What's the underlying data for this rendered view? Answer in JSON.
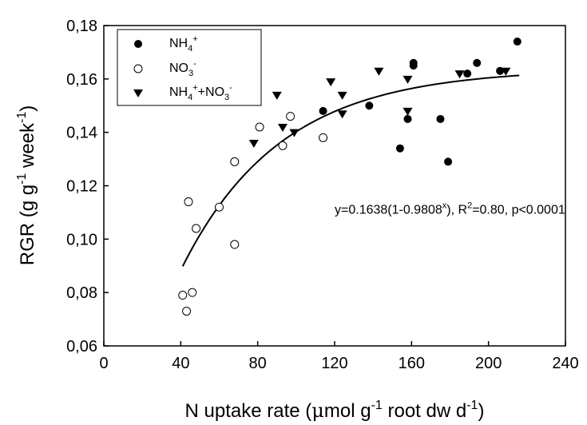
{
  "chart_data": {
    "type": "scatter",
    "xlabel": {
      "main": "N uptake rate (",
      "mu": "μ",
      "mol": "mol g",
      "sup1": "-1",
      "mid": " root dw d",
      "sup2": "-1",
      "end": ")"
    },
    "ylabel": {
      "main": "RGR (g g",
      "sup1": "-1",
      "mid": " week",
      "sup2": "-1",
      "end": ")"
    },
    "xlim": [
      0,
      240
    ],
    "ylim": [
      0.06,
      0.18
    ],
    "x_ticks": [
      0,
      40,
      80,
      120,
      160,
      200,
      240
    ],
    "x_tick_labels": [
      "0",
      "40",
      "80",
      "120",
      "160",
      "200",
      "240"
    ],
    "y_ticks": [
      0.06,
      0.08,
      0.1,
      0.12,
      0.14,
      0.16,
      0.18
    ],
    "y_tick_labels": [
      "0,06",
      "0,08",
      "0,10",
      "0,12",
      "0,14",
      "0,16",
      "0,18"
    ],
    "grid": false,
    "legend_position": "top-left",
    "legend": [
      {
        "key": "nh4",
        "marker": "filled-circle",
        "label": {
          "base": "NH",
          "sub": "4",
          "sup": "+"
        }
      },
      {
        "key": "no3",
        "marker": "open-circle",
        "label": {
          "base": "NO",
          "sub": "3",
          "sup": "-"
        }
      },
      {
        "key": "mixed",
        "marker": "filled-triangle-down",
        "label": {
          "base": "NH",
          "sub": "4",
          "sup": "+",
          "rest": "+NO",
          "sub2": "3",
          "sup2": "-"
        }
      }
    ],
    "series": [
      {
        "key": "nh4",
        "marker": "filled-circle",
        "points": [
          [
            114,
            0.148
          ],
          [
            138,
            0.15
          ],
          [
            154,
            0.134
          ],
          [
            158,
            0.145
          ],
          [
            161,
            0.165
          ],
          [
            161,
            0.166
          ],
          [
            175,
            0.145
          ],
          [
            179,
            0.129
          ],
          [
            189,
            0.162
          ],
          [
            194,
            0.166
          ],
          [
            206,
            0.163
          ],
          [
            215,
            0.174
          ]
        ]
      },
      {
        "key": "no3",
        "marker": "open-circle",
        "points": [
          [
            41,
            0.079
          ],
          [
            43,
            0.073
          ],
          [
            44,
            0.114
          ],
          [
            46,
            0.08
          ],
          [
            48,
            0.104
          ],
          [
            60,
            0.112
          ],
          [
            68,
            0.129
          ],
          [
            68,
            0.098
          ],
          [
            81,
            0.142
          ],
          [
            93,
            0.135
          ],
          [
            97,
            0.146
          ],
          [
            114,
            0.138
          ]
        ]
      },
      {
        "key": "mixed",
        "marker": "filled-triangle-down",
        "points": [
          [
            78,
            0.136
          ],
          [
            90,
            0.154
          ],
          [
            93,
            0.142
          ],
          [
            99,
            0.14
          ],
          [
            118,
            0.159
          ],
          [
            124,
            0.154
          ],
          [
            124,
            0.147
          ],
          [
            143,
            0.163
          ],
          [
            158,
            0.16
          ],
          [
            158,
            0.148
          ],
          [
            185,
            0.162
          ],
          [
            209,
            0.163
          ]
        ]
      }
    ],
    "fit": {
      "a": 0.1638,
      "b": 0.9808,
      "x_range": [
        41,
        216
      ]
    },
    "annotation": {
      "pre": "y=0.1638(1-0.9808",
      "sup": "x",
      "post": "), R",
      "sup2": "2",
      "end": "=0.80, p<0.0001",
      "x": 120,
      "y": 0.1095
    }
  }
}
